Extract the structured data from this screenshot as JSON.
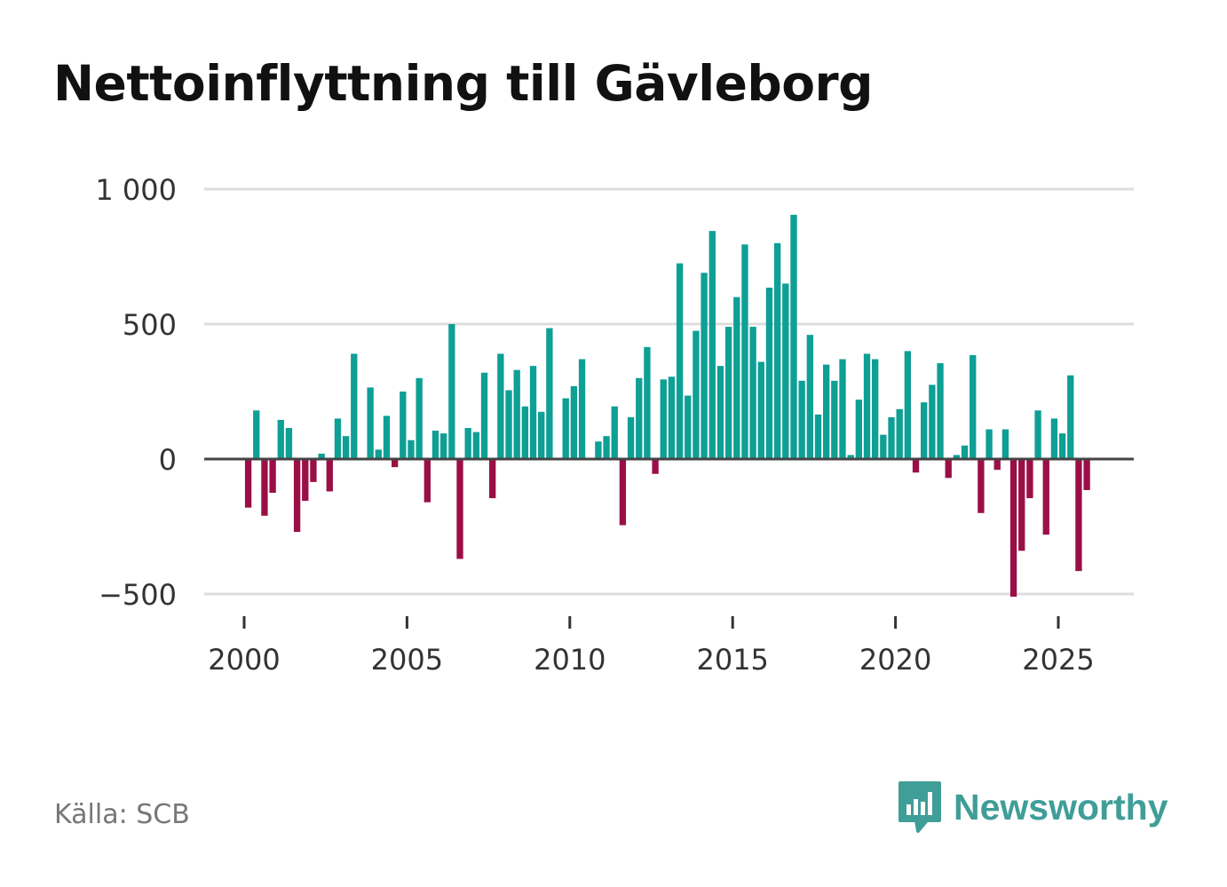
{
  "chart_data": {
    "type": "bar",
    "title": "Nettoinflyttning till Gävleborg",
    "xlabel": "",
    "ylabel": "",
    "ylim": [
      -600,
      1000
    ],
    "y_ticks": [
      1000,
      500,
      0,
      -500
    ],
    "y_tick_labels": [
      "1 000",
      "500",
      "0",
      "−500"
    ],
    "x_ticks": [
      2000,
      2005,
      2010,
      2015,
      2020,
      2025
    ],
    "x_tick_labels": [
      "2000",
      "2005",
      "2010",
      "2015",
      "2020",
      "2025"
    ],
    "grid": true,
    "positive_color": "#0e9f95",
    "negative_color": "#9b0f47",
    "start_year": 2000,
    "periods_per_year": 4,
    "values": [
      -180,
      180,
      -210,
      -125,
      145,
      115,
      -270,
      -155,
      -85,
      20,
      -120,
      150,
      85,
      390,
      0,
      265,
      35,
      160,
      -30,
      250,
      70,
      300,
      -160,
      105,
      95,
      500,
      -370,
      115,
      100,
      320,
      -145,
      390,
      255,
      330,
      195,
      345,
      175,
      485,
      0,
      225,
      270,
      370,
      0,
      65,
      85,
      195,
      -245,
      155,
      300,
      415,
      -55,
      295,
      305,
      725,
      235,
      475,
      690,
      845,
      345,
      490,
      600,
      795,
      490,
      360,
      635,
      800,
      650,
      905,
      290,
      460,
      165,
      350,
      290,
      370,
      15,
      220,
      390,
      370,
      90,
      155,
      185,
      400,
      -50,
      210,
      275,
      355,
      -70,
      15,
      50,
      385,
      -200,
      110,
      -40,
      110,
      -510,
      -340,
      -145,
      180,
      -280,
      150,
      95,
      310,
      -415,
      -115
    ]
  },
  "source": "Källa: SCB",
  "brand": {
    "name": "Newsworthy",
    "color": "#3f9e97",
    "icon": "bar-chart-speech-bubble-icon"
  }
}
